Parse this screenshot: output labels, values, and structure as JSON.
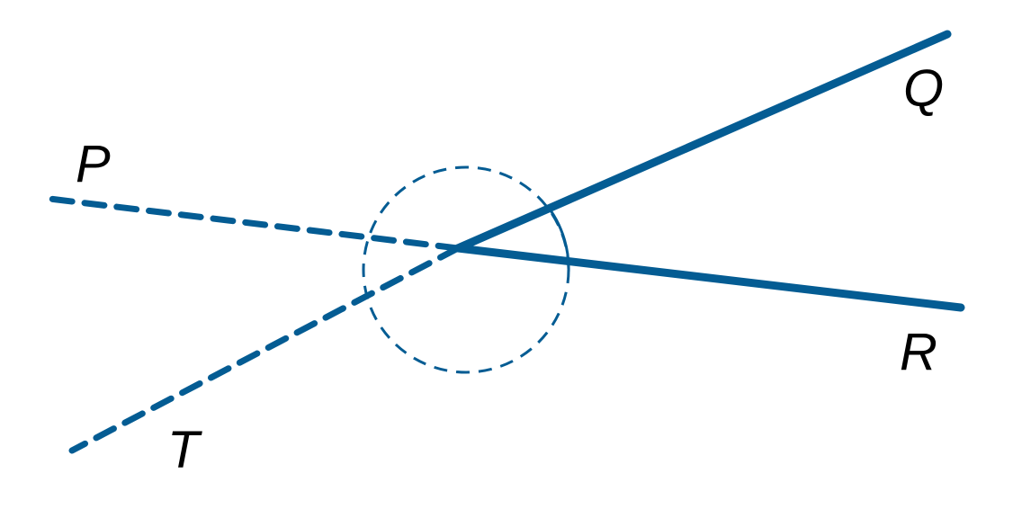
{
  "colors": {
    "line": "#045C93",
    "label": "#000000",
    "background": "#ffffff"
  },
  "labels": {
    "p": "P",
    "q": "Q",
    "r": "R",
    "t": "T"
  }
}
